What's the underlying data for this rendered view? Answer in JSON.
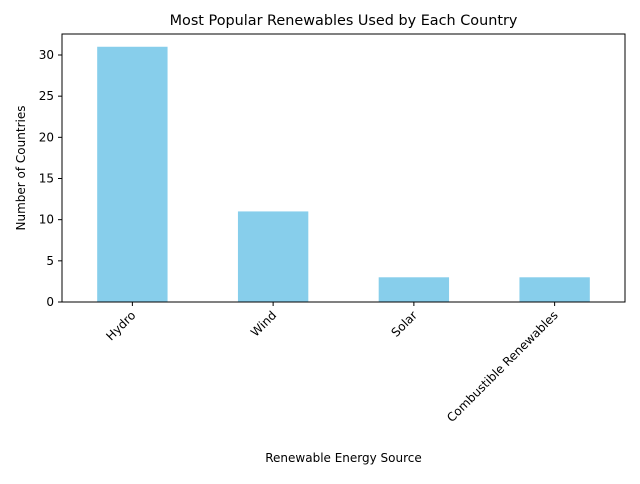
{
  "chart_data": {
    "type": "bar",
    "title": "Most Popular Renewables Used by Each Country",
    "xlabel": "Renewable Energy Source",
    "ylabel": "Number of Countries",
    "categories": [
      "Hydro",
      "Wind",
      "Solar",
      "Combustible Renewables"
    ],
    "values": [
      31,
      11,
      3,
      3
    ],
    "ylim": [
      0,
      32.55
    ],
    "yticks": [
      0,
      5,
      10,
      15,
      20,
      25,
      30
    ],
    "grid": false,
    "legend": "none",
    "bar_color": "#87CEEB",
    "x_tick_rotation": 45
  }
}
